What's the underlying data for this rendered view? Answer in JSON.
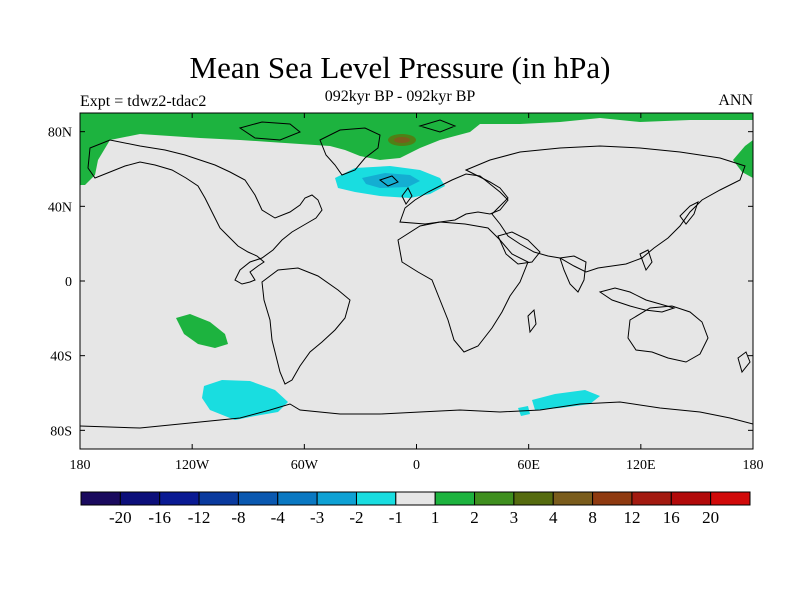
{
  "title": "Mean Sea Level Pressure (in hPa)",
  "subtitle_left": "Expt = tdwz2-tdac2",
  "subtitle_center": "092kyr BP - 092kyr BP",
  "subtitle_right": "ANN",
  "colors": {
    "land_fill": "#e6e6e6",
    "coast": "#000000",
    "anom_pos_1": "#1db33f",
    "anom_pos_3": "#4f8015",
    "anom_pos_4": "#7a5c1c",
    "anom_neg_1": "#19dde0",
    "anom_neg_2": "#14aed2"
  },
  "chart_data": {
    "type": "map",
    "projection": "cylindrical-equidistant",
    "lon_range": [
      -180,
      180
    ],
    "lat_range": [
      -90,
      90
    ],
    "x_ticks": [
      "180",
      "120W",
      "60W",
      "0",
      "60E",
      "120E",
      "180"
    ],
    "x_tick_lons": [
      -180,
      -120,
      -60,
      0,
      60,
      120,
      180
    ],
    "y_ticks": [
      "80N",
      "40N",
      "0",
      "40S",
      "80S"
    ],
    "y_tick_lats": [
      80,
      40,
      0,
      -40,
      -80
    ],
    "colorbar": {
      "labels": [
        "-20",
        "-16",
        "-12",
        "-8",
        "-4",
        "-3",
        "-2",
        "-1",
        "1",
        "2",
        "3",
        "4",
        "8",
        "12",
        "16",
        "20"
      ],
      "colors": [
        "#1a0a5e",
        "#0c0f7a",
        "#0a1a93",
        "#0a3a9e",
        "#0a58b0",
        "#0a78c2",
        "#0ea1d4",
        "#19dde0",
        "#e6e6e6",
        "#1db33f",
        "#3f8f1f",
        "#556b0f",
        "#7a5c1c",
        "#8f3a10",
        "#a31a10",
        "#b20a0a",
        "#d10a0a"
      ]
    },
    "anomalies": [
      {
        "name": "north-atlantic-negative",
        "level": "-1",
        "lon": -20,
        "lat": 48,
        "dlon": 22,
        "dlat": 7
      },
      {
        "name": "north-atlantic-negative-core",
        "level": "-2",
        "lon": -15,
        "lat": 50,
        "dlon": 12,
        "dlat": 3
      },
      {
        "name": "south-pacific-negative",
        "level": "-1",
        "lon": -97,
        "lat": -62,
        "dlon": 20,
        "dlat": 7
      },
      {
        "name": "southern-indian-negative",
        "level": "-1",
        "lon": 78,
        "lat": -65,
        "dlon": 17,
        "dlat": 2.5
      },
      {
        "name": "south-pacific-positive",
        "level": "1",
        "lon": -118,
        "lat": -27,
        "dlon": 11,
        "dlat": 8
      },
      {
        "name": "arctic-positive-core",
        "level": "4",
        "lon": -3,
        "lat": 77,
        "dlon": 4,
        "dlat": 1.5
      }
    ]
  }
}
